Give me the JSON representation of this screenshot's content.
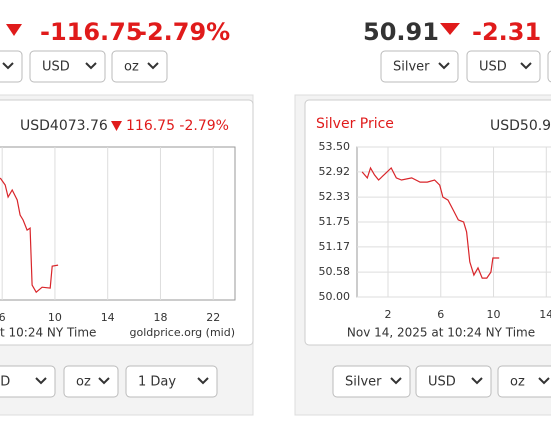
{
  "gold_summary": {
    "change": "-116.75",
    "change_percent": "-2.79%",
    "selects": [
      "USD",
      "oz"
    ]
  },
  "silver_summary": {
    "price": "50.91",
    "change": "-2.31",
    "selects": [
      "Silver",
      "USD"
    ]
  },
  "gold_controls": [
    "SD",
    "oz",
    "1 Day"
  ],
  "silver_controls": [
    "Silver",
    "USD",
    "oz"
  ],
  "chart_data": [
    {
      "type": "line",
      "price": "USD4073.76",
      "change": "116.75 -2.79%",
      "unit": "oz",
      "footer": "t 10:24 NY Time",
      "source": "goldprice.org (mid)",
      "x": [
        5.85,
        6.23,
        6.45,
        6.76,
        7.14,
        7.36,
        7.59,
        7.89,
        8.12,
        8.27,
        8.58,
        9.03,
        9.64,
        9.79,
        10.24
      ],
      "series": [
        {
          "color": "#d9252a",
          "values": [
            4190.5,
            4181.1,
            4165.0,
            4174.4,
            4161.0,
            4140.9,
            4134.2,
            4120.7,
            4123.4,
            4046.9,
            4037.5,
            4044.2,
            4042.9,
            4072.4,
            4073.8
          ]
        }
      ],
      "xlim": [
        -0.35,
        23.65
      ],
      "ylim": [
        4027,
        4232
      ],
      "xticks": [
        6,
        10,
        14,
        18,
        22
      ],
      "grid": true
    },
    {
      "type": "line",
      "title": "Silver Price",
      "price": "USD50.9",
      "footer": "Nov 14, 2025 at 10:24 NY Time",
      "x": [
        0.04,
        0.43,
        0.67,
        0.98,
        1.29,
        1.84,
        2.24,
        2.63,
        3.02,
        3.8,
        4.43,
        4.98,
        5.53,
        5.92,
        6.16,
        6.55,
        6.94,
        7.33,
        7.73,
        7.96,
        8.2,
        8.51,
        8.82,
        9.14,
        9.49,
        9.8,
        9.95,
        10.43
      ],
      "series": [
        {
          "color": "#d9252a",
          "values": [
            52.92,
            52.78,
            53.01,
            52.85,
            52.73,
            52.89,
            53.01,
            52.78,
            52.73,
            52.78,
            52.68,
            52.68,
            52.73,
            52.61,
            52.33,
            52.26,
            52.03,
            51.8,
            51.75,
            51.52,
            50.82,
            50.51,
            50.68,
            50.44,
            50.44,
            50.58,
            50.91,
            50.91
          ]
        }
      ],
      "xlim": [
        -0.35,
        23.65
      ],
      "ylim": [
        50,
        53.5
      ],
      "yticks": [
        {
          "value": 53.5,
          "label": "53.50"
        },
        52.92,
        52.33,
        51.75,
        51.17,
        50.58,
        {
          "value": 50,
          "label": "50.00"
        }
      ],
      "xticks": [
        2,
        6,
        10,
        14
      ],
      "grid": true
    }
  ]
}
